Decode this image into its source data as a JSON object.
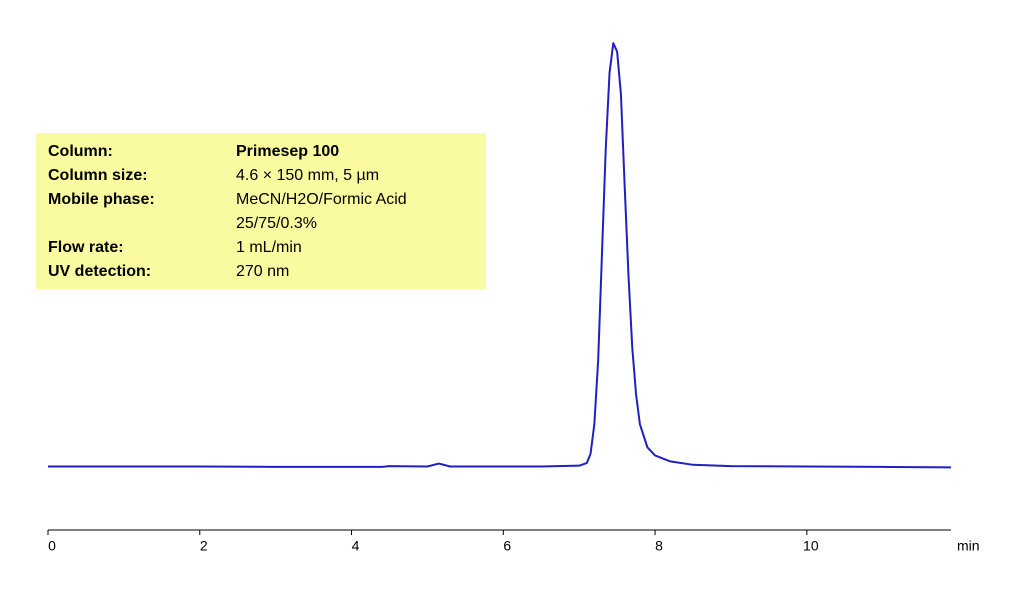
{
  "chart_data": {
    "type": "line",
    "xlabel": "min",
    "x": [
      0,
      1,
      2,
      3,
      4,
      4.4,
      4.5,
      5,
      5.15,
      5.3,
      6,
      6.5,
      7.0,
      7.1,
      7.15,
      7.2,
      7.25,
      7.3,
      7.35,
      7.4,
      7.45,
      7.5,
      7.55,
      7.6,
      7.65,
      7.7,
      7.75,
      7.8,
      7.9,
      8.0,
      8.2,
      8.5,
      9,
      10,
      11,
      11.9
    ],
    "series": [
      {
        "color": "#2020c0",
        "values": [
          0,
          0,
          0,
          -0.1,
          -0.1,
          -0.1,
          0.1,
          0,
          0.7,
          0,
          0,
          0,
          0.2,
          0.8,
          3,
          10,
          25,
          50,
          75,
          93,
          100,
          98,
          88,
          66,
          45,
          28,
          17,
          10,
          4.5,
          2.6,
          1.2,
          0.4,
          0.1,
          0,
          -0.1,
          -0.2
        ]
      }
    ],
    "xlim": [
      0,
      11.9
    ],
    "xticks": [
      0,
      2,
      4,
      6,
      8,
      10
    ],
    "ylim": [
      -15,
      105
    ],
    "info": {
      "color": "#fafaa0",
      "rows": [
        {
          "label": "Column:",
          "value": [
            "Primesep 100"
          ]
        },
        {
          "label": "Column size:",
          "value": [
            "4.6 × 150 mm, 5 µm"
          ]
        },
        {
          "label": "Mobile phase:",
          "value": [
            "MeCN/H2O/Formic Acid",
            "25/75/0.3%"
          ]
        },
        {
          "label": "Flow rate:",
          "value": [
            "1 mL/min"
          ]
        },
        {
          "label": "UV detection:",
          "value": [
            "270 nm"
          ]
        }
      ]
    }
  }
}
